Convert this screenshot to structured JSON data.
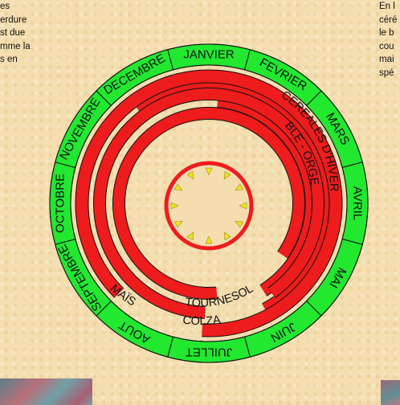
{
  "left_text": {
    "lines": [
      "es",
      "erdure",
      "",
      "st due",
      "",
      "mme la",
      "s en"
    ]
  },
  "right_text": {
    "lines": [
      "En l",
      "céré",
      "le b",
      "cou",
      "mai",
      "spé"
    ]
  },
  "calendar": {
    "months": [
      "JANVIER",
      "FEVRIER",
      "MARS",
      "AVRIL",
      "MAI",
      "JUIN",
      "JUILLET",
      "AOUT",
      "SEPTEMBRE",
      "OCTOBRE",
      "NOVEMBRE",
      "DECEMBRE"
    ],
    "colors": {
      "month_ring": "#22e830",
      "crop_band": "#ee1c1c",
      "center_ring": "#ee1c1c",
      "center_marker": "#f2e21a",
      "outline": "#111111"
    }
  },
  "crops": [
    {
      "key": "cereales_hiver",
      "label": "CEREALES D'HIVER"
    },
    {
      "key": "ble_orge",
      "label": "BLE - ORGE"
    },
    {
      "key": "tournesol",
      "label": "TOURNESOL"
    },
    {
      "key": "colza",
      "label": "COLZA"
    },
    {
      "key": "mais",
      "label": "MAÏS"
    }
  ],
  "photos": [
    {
      "key": "left",
      "description_icon": "field-photo-icon"
    },
    {
      "key": "right",
      "description_icon": "field-photo-icon"
    }
  ]
}
